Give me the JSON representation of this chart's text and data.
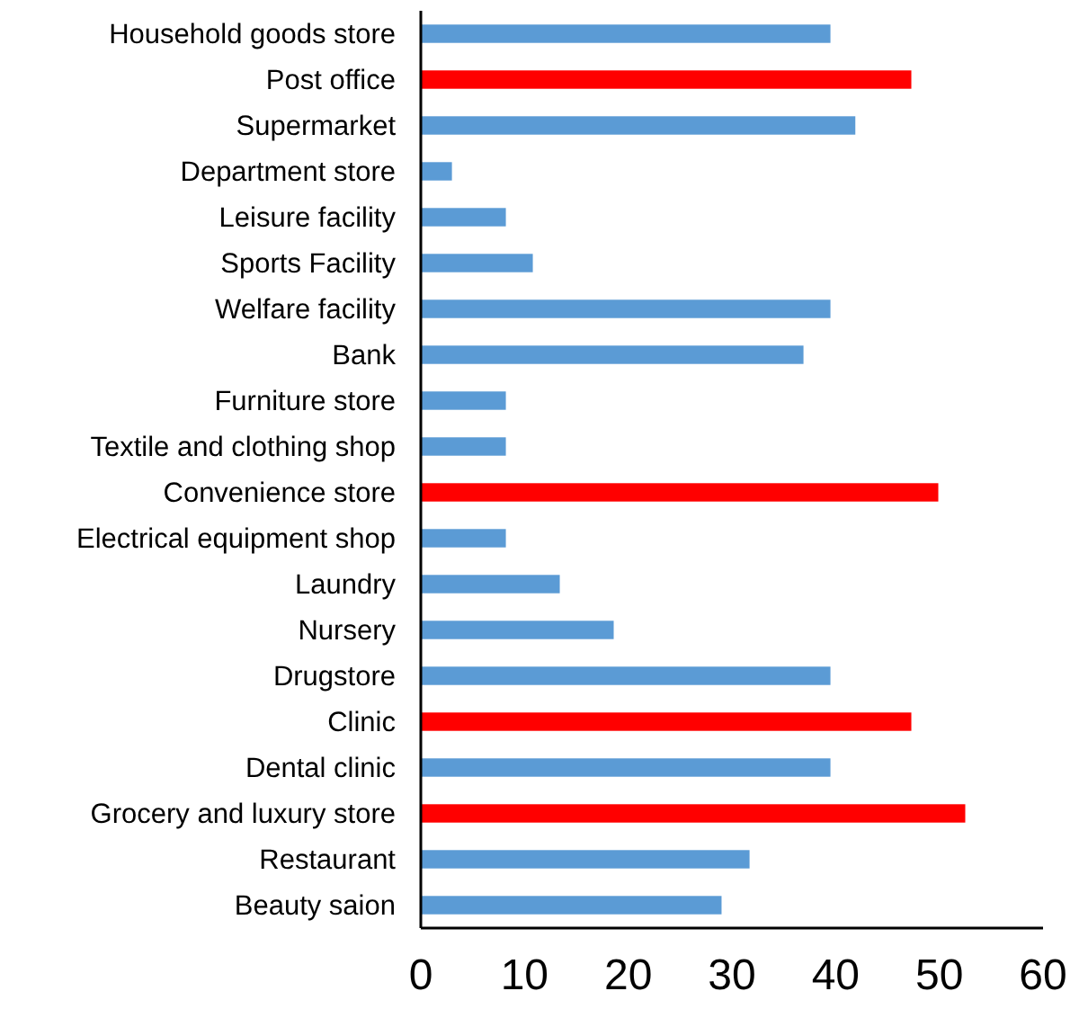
{
  "chart_data": {
    "type": "bar",
    "orientation": "horizontal",
    "categories": [
      "Household goods store",
      "Post office",
      "Supermarket",
      "Department store",
      "Leisure facility",
      "Sports Facility",
      "Welfare facility",
      "Bank",
      "Furniture store",
      "Textile and clothing shop",
      "Convenience store",
      "Electrical equipment shop",
      "Laundry",
      "Nursery",
      "Drugstore",
      "Clinic",
      "Dental clinic",
      "Grocery and luxury store",
      "Restaurant",
      "Beauty saion"
    ],
    "values": [
      39.5,
      47.3,
      41.9,
      3,
      8.2,
      10.8,
      39.5,
      36.9,
      8.2,
      8.2,
      49.9,
      8.2,
      13.4,
      18.6,
      39.5,
      47.3,
      39.5,
      52.5,
      31.7,
      29
    ],
    "colors": [
      "#5b9bd5",
      "#ff0000",
      "#5b9bd5",
      "#5b9bd5",
      "#5b9bd5",
      "#5b9bd5",
      "#5b9bd5",
      "#5b9bd5",
      "#5b9bd5",
      "#5b9bd5",
      "#ff0000",
      "#5b9bd5",
      "#5b9bd5",
      "#5b9bd5",
      "#5b9bd5",
      "#ff0000",
      "#5b9bd5",
      "#ff0000",
      "#5b9bd5",
      "#5b9bd5"
    ],
    "xlim": [
      0,
      60
    ],
    "xticks": [
      0,
      10,
      20,
      30,
      40,
      50,
      60
    ]
  }
}
